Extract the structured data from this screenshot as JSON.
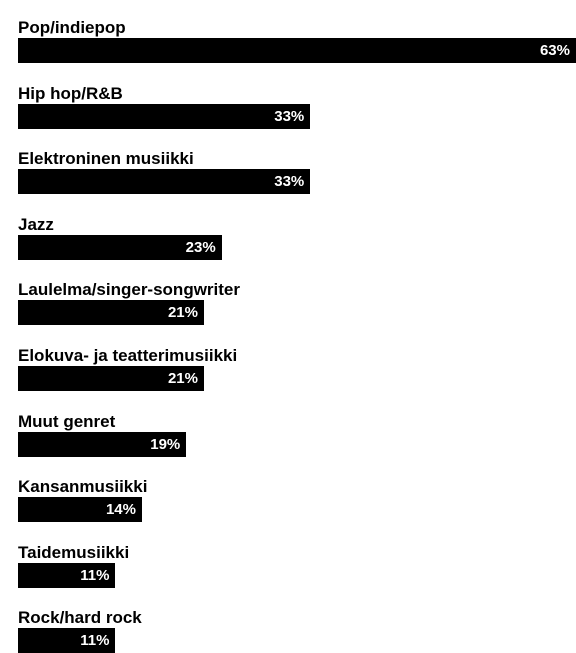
{
  "chart_data": {
    "type": "bar",
    "orientation": "horizontal",
    "categories": [
      "Pop/indiepop",
      "Hip hop/R&B",
      "Elektroninen musiikki",
      "Jazz",
      "Laulelma/singer-songwriter",
      "Elokuva- ja teatterimusiikki",
      "Muut genret",
      "Kansanmusiikki",
      "Taidemusiikki",
      "Rock/hard rock"
    ],
    "values": [
      63,
      33,
      33,
      23,
      21,
      21,
      19,
      14,
      11,
      11
    ],
    "value_labels": [
      "63%",
      "33%",
      "33%",
      "23%",
      "21%",
      "21%",
      "19%",
      "14%",
      "11%",
      "11%"
    ],
    "unit": "%",
    "xlim": [
      0,
      63
    ],
    "grid": false,
    "legend": "none",
    "bar_color": "#000000",
    "label_color": "#ffffff"
  }
}
